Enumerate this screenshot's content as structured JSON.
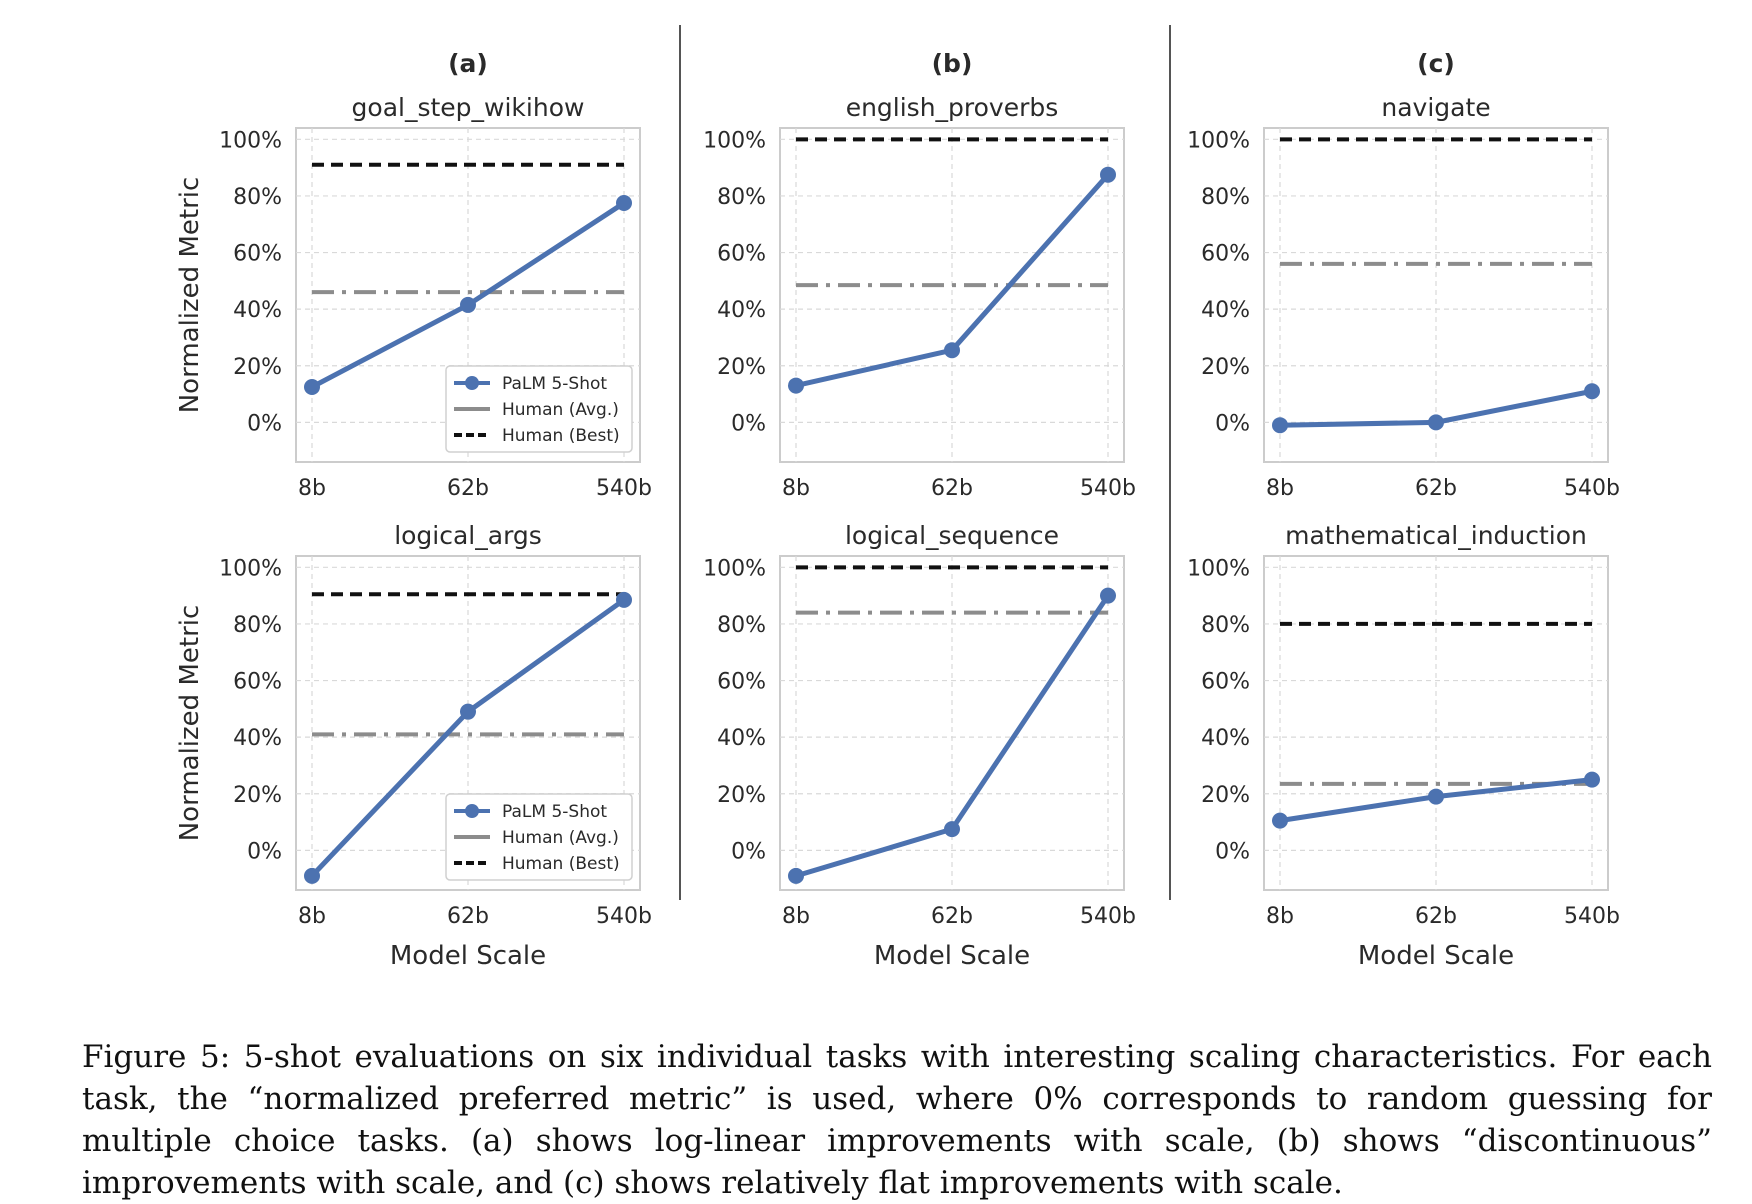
{
  "chart_data": [
    {
      "type": "line",
      "column_label": "(a)",
      "title": "goal_step_wikihow",
      "categories": [
        "8b",
        "62b",
        "540b"
      ],
      "ylabel": "Normalized Metric",
      "xlabel": "",
      "yticks": [
        "0%",
        "20%",
        "40%",
        "60%",
        "80%",
        "100%"
      ],
      "ylim": [
        -14,
        104
      ],
      "grid": true,
      "legend": "lower-right",
      "series": [
        {
          "name": "PaLM 5-Shot",
          "values": [
            12.5,
            41.5,
            77.5
          ]
        }
      ],
      "human_avg": 46,
      "human_best": 91
    },
    {
      "type": "line",
      "column_label": "(b)",
      "title": "english_proverbs",
      "categories": [
        "8b",
        "62b",
        "540b"
      ],
      "ylabel": "",
      "xlabel": "",
      "yticks": [
        "0%",
        "20%",
        "40%",
        "60%",
        "80%",
        "100%"
      ],
      "ylim": [
        -14,
        104
      ],
      "grid": true,
      "series": [
        {
          "name": "PaLM 5-Shot",
          "values": [
            13,
            25.5,
            87.5
          ]
        }
      ],
      "human_avg": 48.5,
      "human_best": 100
    },
    {
      "type": "line",
      "column_label": "(c)",
      "title": "navigate",
      "categories": [
        "8b",
        "62b",
        "540b"
      ],
      "ylabel": "",
      "xlabel": "",
      "yticks": [
        "0%",
        "20%",
        "40%",
        "60%",
        "80%",
        "100%"
      ],
      "ylim": [
        -14,
        104
      ],
      "grid": true,
      "series": [
        {
          "name": "PaLM 5-Shot",
          "values": [
            -1,
            0,
            11
          ]
        }
      ],
      "human_avg": 56,
      "human_best": 100
    },
    {
      "type": "line",
      "title": "logical_args",
      "categories": [
        "8b",
        "62b",
        "540b"
      ],
      "ylabel": "Normalized Metric",
      "xlabel": "Model Scale",
      "yticks": [
        "0%",
        "20%",
        "40%",
        "60%",
        "80%",
        "100%"
      ],
      "ylim": [
        -14,
        104
      ],
      "grid": true,
      "legend": "lower-right",
      "series": [
        {
          "name": "PaLM 5-Shot",
          "values": [
            -9,
            49,
            88.5
          ]
        }
      ],
      "human_avg": 41,
      "human_best": 90.5
    },
    {
      "type": "line",
      "title": "logical_sequence",
      "categories": [
        "8b",
        "62b",
        "540b"
      ],
      "ylabel": "",
      "xlabel": "Model Scale",
      "yticks": [
        "0%",
        "20%",
        "40%",
        "60%",
        "80%",
        "100%"
      ],
      "ylim": [
        -14,
        104
      ],
      "grid": true,
      "series": [
        {
          "name": "PaLM 5-Shot",
          "values": [
            -9,
            7.5,
            90
          ]
        }
      ],
      "human_avg": 84,
      "human_best": 100
    },
    {
      "type": "line",
      "title": "mathematical_induction",
      "categories": [
        "8b",
        "62b",
        "540b"
      ],
      "ylabel": "",
      "xlabel": "Model Scale",
      "yticks": [
        "0%",
        "20%",
        "40%",
        "60%",
        "80%",
        "100%"
      ],
      "ylim": [
        -14,
        104
      ],
      "grid": true,
      "series": [
        {
          "name": "PaLM 5-Shot",
          "values": [
            10.5,
            19,
            25
          ]
        }
      ],
      "human_avg": 23.5,
      "human_best": 80
    }
  ],
  "legend": {
    "palm": "PaLM 5-Shot",
    "human_avg": "Human (Avg.)",
    "human_best": "Human (Best)"
  },
  "colors": {
    "palm": "#4c72b0",
    "human_avg": "#8c8c8c",
    "human_best": "#111111",
    "grid": "#d9d9d9",
    "axes": "#cccccc"
  },
  "caption": "Figure 5: 5-shot evaluations on six individual tasks with interesting scaling characteristics. For each task, the “normalized preferred metric” is used, where 0% corresponds to random guessing for multiple choice tasks. (a) shows log-linear improvements with scale, (b) shows “discontinuous” improvements with scale, and (c) shows relatively flat improvements with scale."
}
